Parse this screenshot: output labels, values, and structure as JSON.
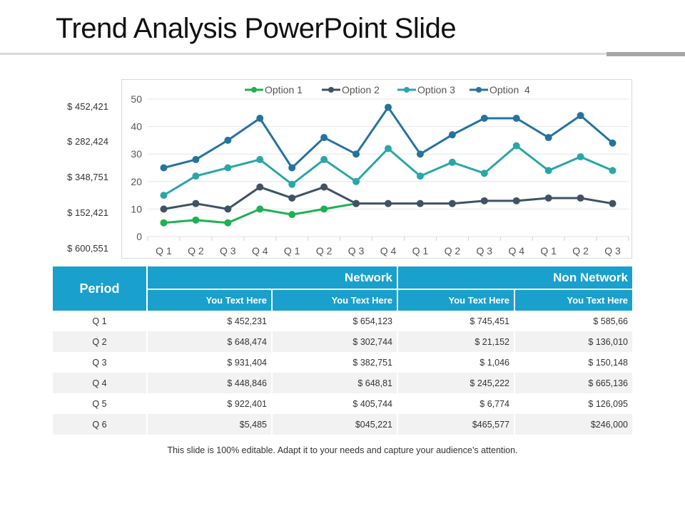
{
  "slide": {
    "title": "Trend Analysis PowerPoint Slide",
    "footnote": "This slide is 100% editable. Adapt it to your needs and capture your audience’s attention."
  },
  "side_labels": [
    "$ 452,421",
    "$ 282,424",
    "$ 348,751",
    "$ 152,421",
    "$ 600,551"
  ],
  "colors": {
    "option1": "#1db154",
    "option2": "#3f5266",
    "option3": "#2aa6a8",
    "option4": "#24739f",
    "table_header": "#1aa0cc"
  },
  "chart_data": {
    "type": "line",
    "categories": [
      "Q 1",
      "Q 2",
      "Q 3",
      "Q 4",
      "Q 1",
      "Q 2",
      "Q 3",
      "Q 4",
      "Q 1",
      "Q 2",
      "Q 3",
      "Q 4",
      "Q 1",
      "Q 2",
      "Q 3"
    ],
    "ylim": [
      0,
      50
    ],
    "yticks": [
      "0",
      "10",
      "20",
      "30",
      "40",
      "50"
    ],
    "grid": true,
    "legend_position": "top",
    "series": [
      {
        "name": "Option 1",
        "values": [
          5,
          6,
          5,
          10,
          8,
          10,
          12,
          null,
          null,
          null,
          null,
          null,
          null,
          null,
          null
        ]
      },
      {
        "name": "Option 2",
        "values": [
          10,
          12,
          10,
          18,
          14,
          18,
          12,
          12,
          12,
          12,
          13,
          13,
          14,
          14,
          12
        ]
      },
      {
        "name": "Option 3",
        "values": [
          15,
          22,
          25,
          28,
          19,
          28,
          20,
          32,
          22,
          27,
          23,
          33,
          24,
          29,
          24
        ]
      },
      {
        "name": "Option  4",
        "values": [
          25,
          28,
          35,
          43,
          25,
          36,
          30,
          47,
          30,
          37,
          43,
          43,
          36,
          44,
          34
        ]
      }
    ]
  },
  "table": {
    "period_header": "Period",
    "group_headers": [
      "Network",
      "Non Network"
    ],
    "sub_headers": [
      "You Text Here",
      "You Text Here",
      "You Text Here",
      "You Text Here"
    ],
    "rows": [
      {
        "period": "Q 1",
        "cells": [
          "$ 452,231",
          "$ 654,123",
          "$ 745,451",
          "$ 585,66"
        ]
      },
      {
        "period": "Q 2",
        "cells": [
          "$ 648,474",
          "$ 302,744",
          "$ 21,152",
          "$ 136,010"
        ]
      },
      {
        "period": "Q 3",
        "cells": [
          "$ 931,404",
          "$ 382,751",
          "$ 1,046",
          "$ 150,148"
        ]
      },
      {
        "period": "Q 4",
        "cells": [
          "$ 448,846",
          "$ 648,81",
          "$ 245,222",
          "$ 665,136"
        ]
      },
      {
        "period": "Q 5",
        "cells": [
          "$ 922,401",
          "$ 405,744",
          "$ 6,774",
          "$ 126,095"
        ]
      },
      {
        "period": "Q 6",
        "cells": [
          "$5,485",
          "$045,221",
          "$465,577",
          "$246,000"
        ]
      }
    ]
  }
}
